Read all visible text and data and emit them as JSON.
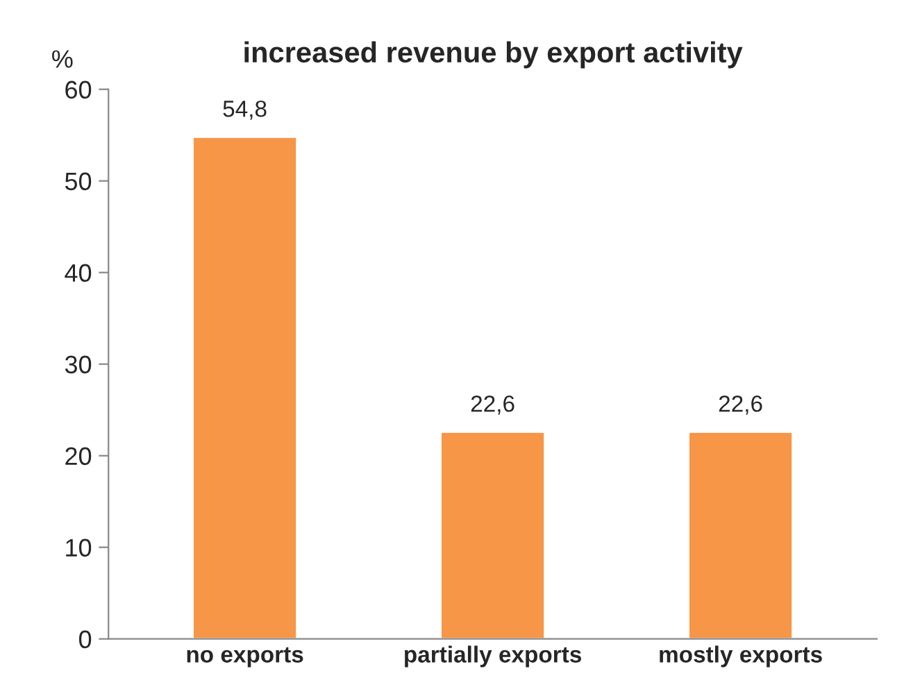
{
  "chart_data": {
    "type": "bar",
    "title": "increased revenue by export activity",
    "ylabel": "%",
    "categories": [
      "no exports",
      "partially exports",
      "mostly exports"
    ],
    "series": [
      {
        "color": "#f79646",
        "values": [
          54.8,
          22.6,
          22.6
        ]
      }
    ],
    "value_labels": [
      "54,8",
      "22,6",
      "22,6"
    ],
    "ylim": [
      0,
      60
    ],
    "yticks": [
      0,
      10,
      20,
      30,
      40,
      50,
      60
    ],
    "grid": false,
    "legend": false
  }
}
